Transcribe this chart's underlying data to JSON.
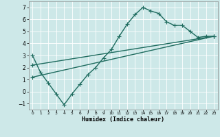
{
  "xlabel": "Humidex (Indice chaleur)",
  "xlim": [
    -0.5,
    23.5
  ],
  "ylim": [
    -1.5,
    7.5
  ],
  "xticks": [
    0,
    1,
    2,
    3,
    4,
    5,
    6,
    7,
    8,
    9,
    10,
    11,
    12,
    13,
    14,
    15,
    16,
    17,
    18,
    19,
    20,
    21,
    22,
    23
  ],
  "yticks": [
    -1,
    0,
    1,
    2,
    3,
    4,
    5,
    6,
    7
  ],
  "bg_color": "#cde8e8",
  "line_color": "#1e6b5e",
  "curve1_x": [
    0,
    1,
    2,
    3,
    4,
    5,
    6,
    7,
    8,
    9,
    10,
    11,
    12,
    13,
    14,
    15,
    16,
    17,
    18,
    19,
    20,
    21,
    22,
    23
  ],
  "curve1_y": [
    3.0,
    1.6,
    0.7,
    -0.2,
    -1.1,
    -0.2,
    0.6,
    1.4,
    2.0,
    2.8,
    3.5,
    4.6,
    5.6,
    6.4,
    7.0,
    6.7,
    6.5,
    5.8,
    5.5,
    5.5,
    5.0,
    4.5,
    4.6,
    4.6
  ],
  "curve2_x": [
    0,
    23
  ],
  "curve2_y": [
    1.2,
    4.6
  ],
  "curve3_x": [
    0,
    23
  ],
  "curve3_y": [
    2.2,
    4.6
  ],
  "marker": "+",
  "markersize": 4,
  "linewidth": 1.0
}
